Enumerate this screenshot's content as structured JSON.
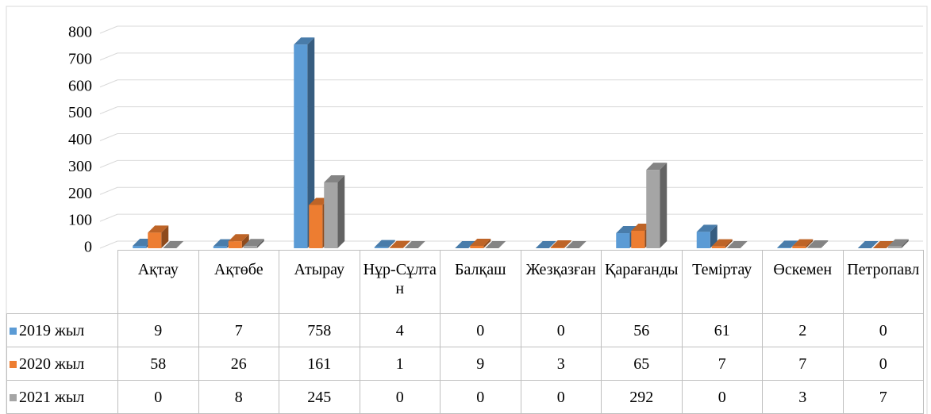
{
  "chart_data": {
    "type": "bar3d",
    "categories": [
      "Ақтау",
      "Ақтөбе",
      "Атырау",
      "Нұр-Сұлтан",
      "Балқаш",
      "Жезқазған",
      "Қарағанды",
      "Теміртау",
      "Өскемен",
      "Петропавл"
    ],
    "series": [
      {
        "name": "2019 жыл",
        "color": "#5b9bd5",
        "values": [
          9,
          7,
          758,
          4,
          0,
          0,
          56,
          61,
          2,
          0
        ]
      },
      {
        "name": "2020 жыл",
        "color": "#ed7d31",
        "values": [
          58,
          26,
          161,
          1,
          9,
          3,
          65,
          7,
          7,
          0
        ]
      },
      {
        "name": "2021 жыл",
        "color": "#a5a5a5",
        "values": [
          0,
          8,
          245,
          0,
          0,
          0,
          292,
          0,
          3,
          7
        ]
      }
    ],
    "ylim": [
      0,
      800
    ],
    "yticks": [
      0,
      100,
      200,
      300,
      400,
      500,
      600,
      700,
      800
    ],
    "grid": true,
    "data_table": true
  }
}
